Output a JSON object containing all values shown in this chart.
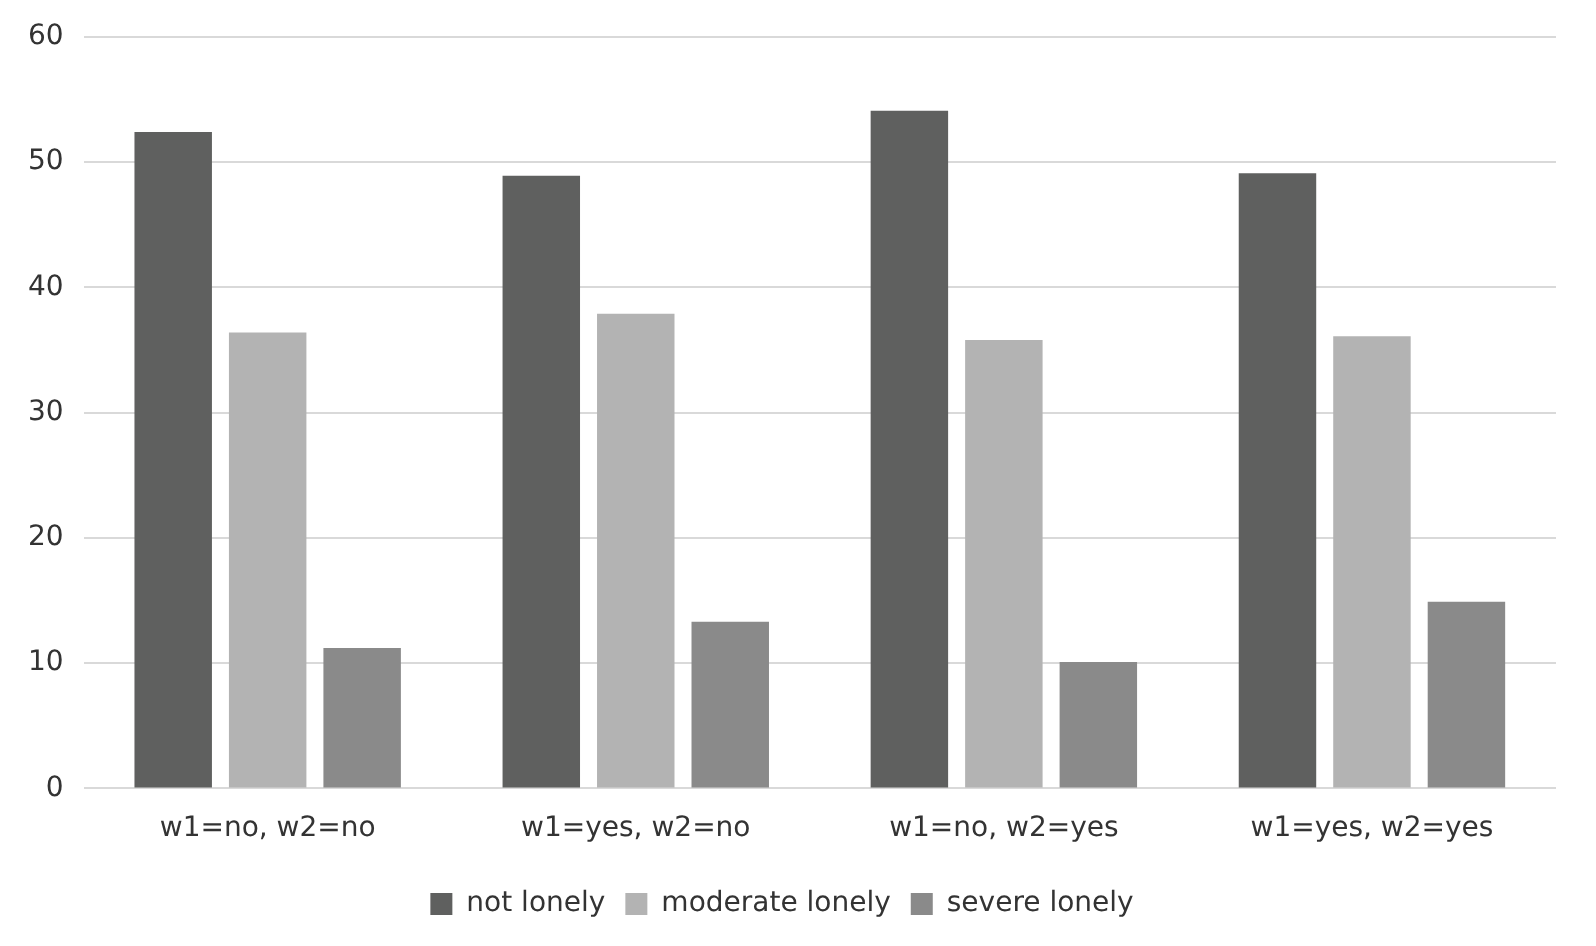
{
  "chart_data": {
    "type": "bar",
    "categories": [
      "w1=no, w2=no",
      "w1=yes, w2=no",
      "w1=no, w2=yes",
      "w1=yes, w2=yes"
    ],
    "series": [
      {
        "name": "not lonely",
        "color": "#5f605f",
        "values": [
          52.4,
          48.9,
          54.1,
          49.1
        ]
      },
      {
        "name": "moderate lonely",
        "color": "#b3b3b3",
        "values": [
          36.4,
          37.9,
          35.8,
          36.1
        ]
      },
      {
        "name": "severe lonely",
        "color": "#8a8a8a",
        "values": [
          11.2,
          13.3,
          10.1,
          14.9
        ]
      }
    ],
    "ylim": [
      0,
      60
    ],
    "yticks": [
      0,
      10,
      20,
      30,
      40,
      50,
      60
    ],
    "grid": "y",
    "legend": "bottom"
  }
}
